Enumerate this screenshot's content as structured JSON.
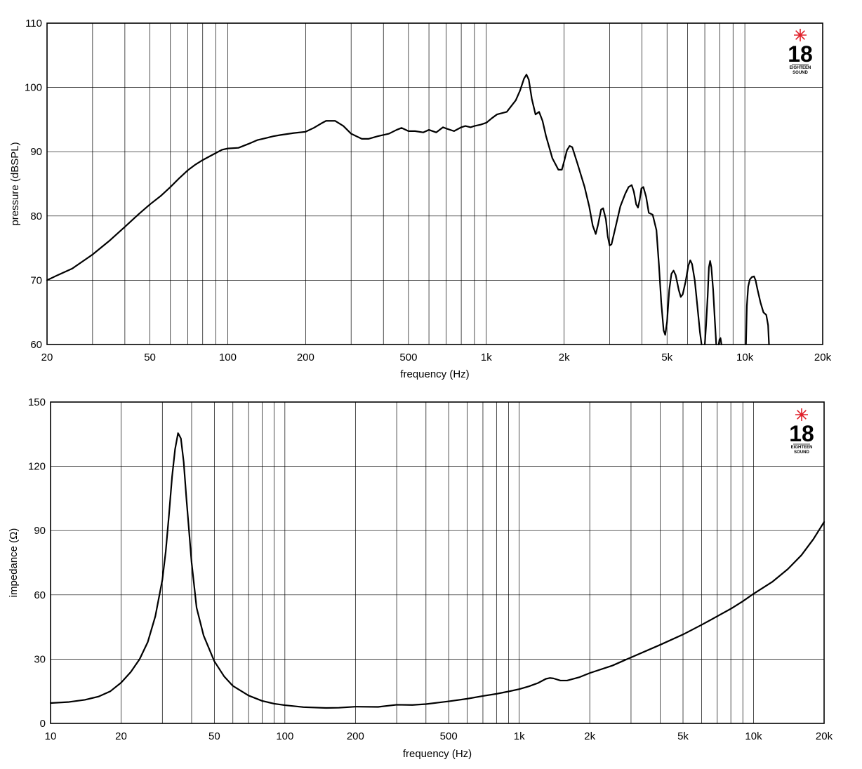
{
  "logo": {
    "number": "18",
    "line1": "EIGHTEEN",
    "line2": "SOUND",
    "star_color": "#e0202a"
  },
  "chart_data": [
    {
      "type": "line",
      "title": "",
      "xlabel": "frequency (Hz)",
      "ylabel": "pressure (dBSPL)",
      "xscale": "log",
      "xlim": [
        20,
        20000
      ],
      "ylim": [
        60,
        110
      ],
      "grid": true,
      "xticks": [
        {
          "v": 20,
          "label": "20"
        },
        {
          "v": 50,
          "label": "50"
        },
        {
          "v": 100,
          "label": "100"
        },
        {
          "v": 200,
          "label": "200"
        },
        {
          "v": 500,
          "label": "500"
        },
        {
          "v": 1000,
          "label": "1k"
        },
        {
          "v": 2000,
          "label": "2k"
        },
        {
          "v": 5000,
          "label": "5k"
        },
        {
          "v": 10000,
          "label": "10k"
        },
        {
          "v": 20000,
          "label": "20k"
        }
      ],
      "yticks": [
        {
          "v": 60,
          "label": "60"
        },
        {
          "v": 70,
          "label": "70"
        },
        {
          "v": 80,
          "label": "80"
        },
        {
          "v": 90,
          "label": "90"
        },
        {
          "v": 100,
          "label": "100"
        },
        {
          "v": 110,
          "label": "110"
        }
      ],
      "series": [
        {
          "segments": [
            [
              [
                20,
                70
              ],
              [
                22,
                70.8
              ],
              [
                25,
                71.8
              ],
              [
                30,
                74
              ],
              [
                35,
                76.2
              ],
              [
                40,
                78.3
              ],
              [
                45,
                80.2
              ],
              [
                50,
                81.8
              ],
              [
                55,
                83.1
              ],
              [
                60,
                84.5
              ],
              [
                65,
                85.9
              ],
              [
                70,
                87.1
              ],
              [
                75,
                88
              ],
              [
                80,
                88.7
              ],
              [
                90,
                89.8
              ],
              [
                95,
                90.3
              ],
              [
                100,
                90.5
              ],
              [
                110,
                90.6
              ],
              [
                120,
                91.2
              ],
              [
                130,
                91.8
              ],
              [
                140,
                92.1
              ],
              [
                150,
                92.4
              ],
              [
                160,
                92.6
              ],
              [
                180,
                92.9
              ],
              [
                200,
                93.1
              ],
              [
                215,
                93.7
              ],
              [
                230,
                94.4
              ],
              [
                240,
                94.8
              ],
              [
                260,
                94.8
              ],
              [
                280,
                94
              ],
              [
                300,
                92.8
              ],
              [
                330,
                92
              ],
              [
                350,
                92
              ],
              [
                380,
                92.4
              ],
              [
                420,
                92.8
              ],
              [
                450,
                93.4
              ],
              [
                470,
                93.7
              ],
              [
                500,
                93.2
              ],
              [
                530,
                93.2
              ],
              [
                570,
                93
              ],
              [
                600,
                93.4
              ],
              [
                640,
                93
              ],
              [
                680,
                93.8
              ],
              [
                700,
                93.6
              ],
              [
                750,
                93.2
              ],
              [
                800,
                93.8
              ],
              [
                830,
                94
              ],
              [
                870,
                93.8
              ],
              [
                900,
                94
              ],
              [
                950,
                94.2
              ],
              [
                1000,
                94.5
              ],
              [
                1050,
                95.2
              ],
              [
                1100,
                95.8
              ],
              [
                1200,
                96.2
              ],
              [
                1300,
                98
              ],
              [
                1350,
                99.5
              ],
              [
                1400,
                101.4
              ],
              [
                1430,
                102
              ],
              [
                1460,
                101.2
              ],
              [
                1500,
                98.2
              ],
              [
                1550,
                95.8
              ],
              [
                1600,
                96.2
              ],
              [
                1650,
                94.8
              ],
              [
                1700,
                92.5
              ],
              [
                1800,
                89
              ],
              [
                1900,
                87.2
              ],
              [
                1960,
                87.2
              ],
              [
                2000,
                88.5
              ],
              [
                2050,
                90.2
              ],
              [
                2100,
                90.9
              ],
              [
                2150,
                90.7
              ],
              [
                2250,
                88.2
              ],
              [
                2400,
                84.5
              ],
              [
                2500,
                81.5
              ],
              [
                2580,
                78.5
              ],
              [
                2650,
                77.2
              ],
              [
                2700,
                78.5
              ],
              [
                2780,
                81
              ],
              [
                2830,
                81.2
              ],
              [
                2900,
                79.5
              ],
              [
                2950,
                76.8
              ],
              [
                3000,
                75.4
              ],
              [
                3050,
                75.6
              ],
              [
                3150,
                78
              ],
              [
                3300,
                81.5
              ],
              [
                3450,
                83.5
              ],
              [
                3550,
                84.5
              ],
              [
                3650,
                84.8
              ],
              [
                3720,
                83.8
              ],
              [
                3800,
                81.8
              ],
              [
                3860,
                81.3
              ],
              [
                3920,
                82.5
              ],
              [
                3980,
                84.3
              ],
              [
                4050,
                84.5
              ],
              [
                4150,
                83
              ],
              [
                4250,
                80.5
              ],
              [
                4400,
                80.2
              ],
              [
                4550,
                77.8
              ],
              [
                4650,
                72.5
              ],
              [
                4750,
                66.5
              ],
              [
                4850,
                62.2
              ],
              [
                4920,
                61.5
              ],
              [
                5000,
                63.5
              ],
              [
                5100,
                68.5
              ],
              [
                5200,
                71
              ],
              [
                5300,
                71.5
              ],
              [
                5400,
                70.8
              ],
              [
                5550,
                68.5
              ],
              [
                5650,
                67.4
              ],
              [
                5750,
                67.8
              ],
              [
                5900,
                69.8
              ],
              [
                6050,
                72.3
              ],
              [
                6150,
                73.1
              ],
              [
                6250,
                72.5
              ],
              [
                6400,
                70
              ],
              [
                6550,
                66
              ],
              [
                6700,
                62
              ],
              [
                6800,
                60
              ]
            ],
            [
              [
                7000,
                60
              ],
              [
                7080,
                63
              ],
              [
                7180,
                67.5
              ],
              [
                7260,
                72
              ],
              [
                7340,
                73
              ],
              [
                7420,
                72
              ],
              [
                7540,
                68.5
              ],
              [
                7660,
                63.5
              ],
              [
                7750,
                60
              ]
            ],
            [
              [
                7920,
                60
              ],
              [
                7980,
                60.8
              ],
              [
                8050,
                61
              ],
              [
                8120,
                60
              ]
            ],
            [
              [
                10100,
                60
              ],
              [
                10180,
                66
              ],
              [
                10300,
                69
              ],
              [
                10450,
                70.1
              ],
              [
                10650,
                70.5
              ],
              [
                10850,
                70.6
              ],
              [
                11000,
                70
              ],
              [
                11200,
                68.5
              ],
              [
                11500,
                66.5
              ],
              [
                11800,
                65
              ],
              [
                12100,
                64.6
              ],
              [
                12300,
                63
              ],
              [
                12400,
                60
              ]
            ]
          ]
        }
      ]
    },
    {
      "type": "line",
      "title": "",
      "xlabel": "frequency (Hz)",
      "ylabel": "impedance (Ω)",
      "xscale": "log",
      "xlim": [
        10,
        20000
      ],
      "ylim": [
        0,
        150
      ],
      "grid": true,
      "xticks": [
        {
          "v": 10,
          "label": "10"
        },
        {
          "v": 20,
          "label": "20"
        },
        {
          "v": 50,
          "label": "50"
        },
        {
          "v": 100,
          "label": "100"
        },
        {
          "v": 200,
          "label": "200"
        },
        {
          "v": 500,
          "label": "500"
        },
        {
          "v": 1000,
          "label": "1k"
        },
        {
          "v": 2000,
          "label": "2k"
        },
        {
          "v": 5000,
          "label": "5k"
        },
        {
          "v": 10000,
          "label": "10k"
        },
        {
          "v": 20000,
          "label": "20k"
        }
      ],
      "yticks": [
        {
          "v": 0,
          "label": "0"
        },
        {
          "v": 30,
          "label": "30"
        },
        {
          "v": 60,
          "label": "60"
        },
        {
          "v": 90,
          "label": "90"
        },
        {
          "v": 120,
          "label": "120"
        },
        {
          "v": 150,
          "label": "150"
        }
      ],
      "series": [
        {
          "segments": [
            [
              [
                10,
                9.5
              ],
              [
                12,
                10
              ],
              [
                14,
                11
              ],
              [
                16,
                12.5
              ],
              [
                18,
                15
              ],
              [
                20,
                19
              ],
              [
                22,
                24
              ],
              [
                24,
                30
              ],
              [
                26,
                38
              ],
              [
                28,
                50
              ],
              [
                30,
                67
              ],
              [
                31,
                80
              ],
              [
                32,
                97
              ],
              [
                33,
                115
              ],
              [
                34,
                128
              ],
              [
                35,
                135.5
              ],
              [
                36,
                133
              ],
              [
                37,
                122
              ],
              [
                38,
                105
              ],
              [
                40,
                75
              ],
              [
                42,
                54
              ],
              [
                45,
                41
              ],
              [
                50,
                29
              ],
              [
                55,
                22
              ],
              [
                60,
                17.5
              ],
              [
                70,
                13
              ],
              [
                80,
                10.5
              ],
              [
                90,
                9.2
              ],
              [
                100,
                8.5
              ],
              [
                120,
                7.6
              ],
              [
                150,
                7.2
              ],
              [
                170,
                7.3
              ],
              [
                200,
                7.8
              ],
              [
                250,
                7.7
              ],
              [
                300,
                8.7
              ],
              [
                350,
                8.6
              ],
              [
                400,
                9
              ],
              [
                500,
                10.3
              ],
              [
                600,
                11.5
              ],
              [
                700,
                12.8
              ],
              [
                800,
                13.8
              ],
              [
                900,
                14.9
              ],
              [
                1000,
                16
              ],
              [
                1100,
                17.3
              ],
              [
                1200,
                18.8
              ],
              [
                1300,
                20.8
              ],
              [
                1350,
                21.2
              ],
              [
                1400,
                21
              ],
              [
                1500,
                20
              ],
              [
                1600,
                20
              ],
              [
                1800,
                21.5
              ],
              [
                2000,
                23.5
              ],
              [
                2500,
                27
              ],
              [
                3000,
                30.8
              ],
              [
                4000,
                36.7
              ],
              [
                5000,
                41.5
              ],
              [
                6000,
                46
              ],
              [
                7000,
                50
              ],
              [
                8000,
                53.5
              ],
              [
                9000,
                57
              ],
              [
                10000,
                60.5
              ],
              [
                12000,
                66
              ],
              [
                14000,
                72
              ],
              [
                16000,
                78.5
              ],
              [
                18000,
                86
              ],
              [
                20000,
                94
              ]
            ]
          ]
        }
      ]
    }
  ]
}
